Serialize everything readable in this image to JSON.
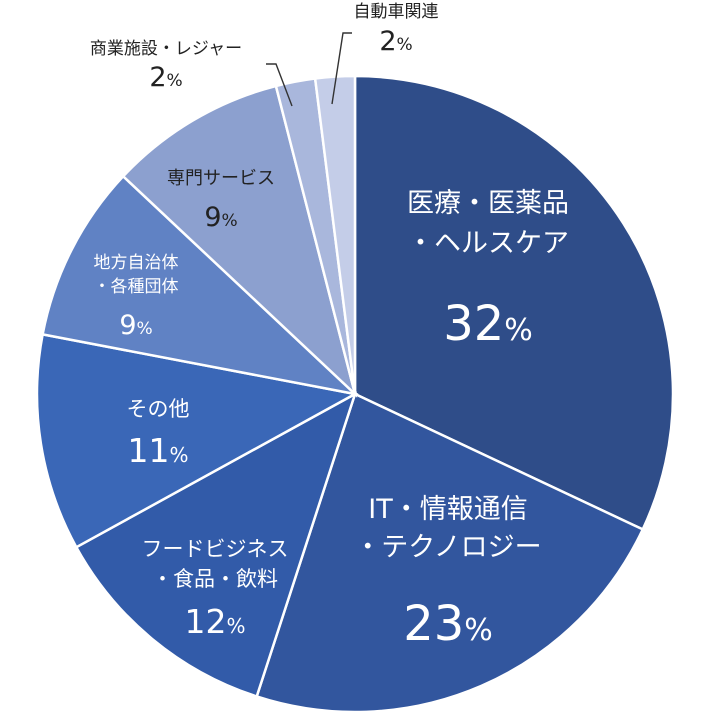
{
  "chart_data": {
    "type": "pie",
    "slices": [
      {
        "lines": [
          "医療・医薬品",
          "・ヘルスケア"
        ],
        "value": 32,
        "pct": "32",
        "color": "#2f4d89",
        "text_color": "#ffffff"
      },
      {
        "lines": [
          "IT・情報通信",
          "・テクノロジー"
        ],
        "value": 23,
        "pct": "23",
        "color": "#32569e",
        "text_color": "#ffffff"
      },
      {
        "lines": [
          "フードビジネス",
          "・食品・飲料"
        ],
        "value": 12,
        "pct": "12",
        "color": "#325ba9",
        "text_color": "#ffffff"
      },
      {
        "lines": [
          "その他"
        ],
        "value": 11,
        "pct": "11",
        "color": "#3a67b7",
        "text_color": "#ffffff"
      },
      {
        "lines": [
          "地方自治体",
          "・各種団体"
        ],
        "value": 9,
        "pct": "9",
        "color": "#6082c4",
        "text_color": "#ffffff"
      },
      {
        "lines": [
          "専門サービス"
        ],
        "value": 9,
        "pct": "9",
        "color": "#8ca0cf",
        "text_color": "#222222"
      },
      {
        "lines": [
          "商業施設・レジャー"
        ],
        "value": 2,
        "pct": "2",
        "color": "#a9b7dc",
        "text_color": "#222222"
      },
      {
        "lines": [
          "自動車関連"
        ],
        "value": 2,
        "pct": "2",
        "color": "#c4cde8",
        "text_color": "#222222"
      }
    ],
    "percent_sign": "%"
  }
}
